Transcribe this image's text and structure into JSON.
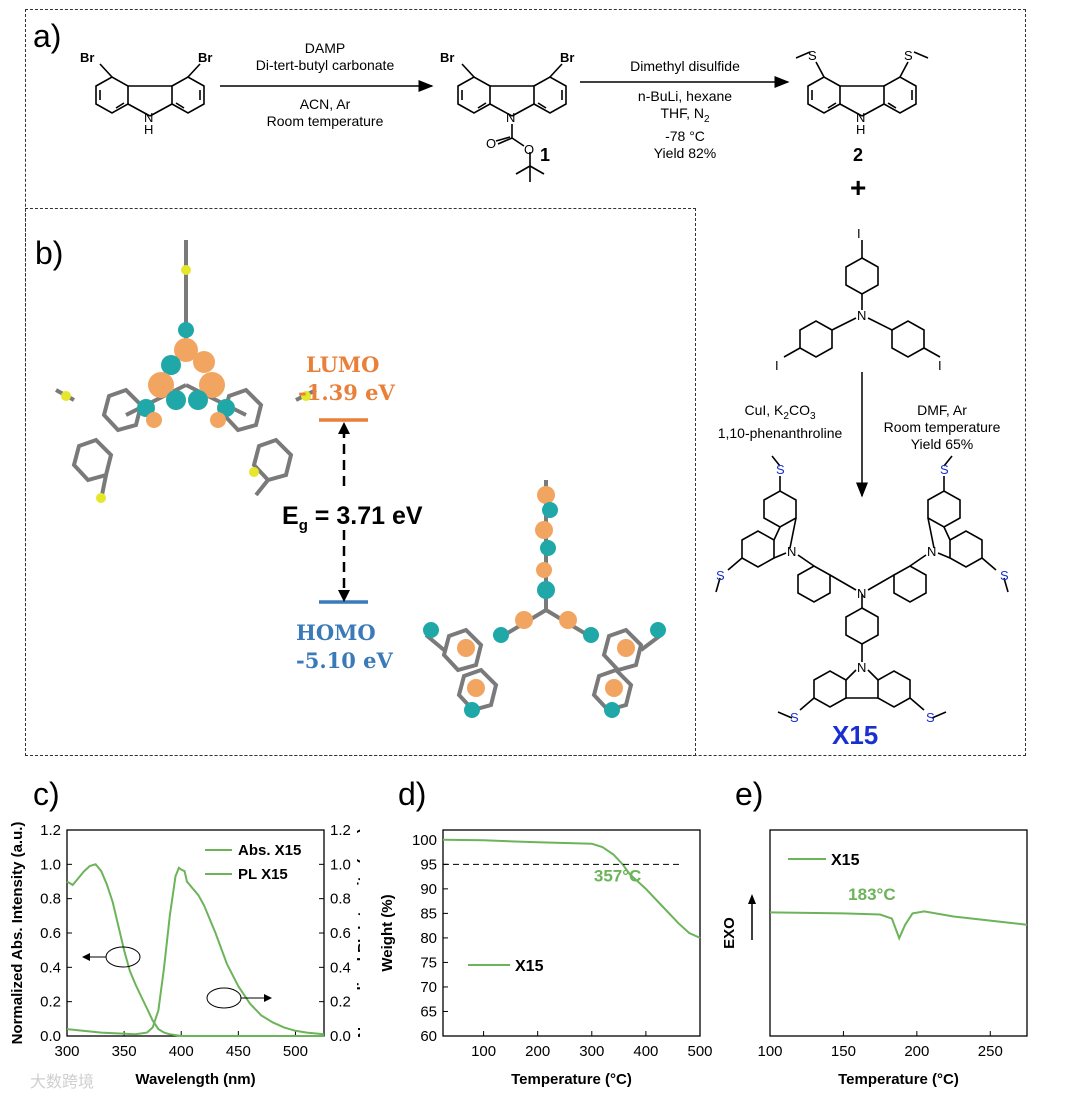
{
  "panel_labels": {
    "a": "a)",
    "b": "b)",
    "c": "c)",
    "d": "d)",
    "e": "e)"
  },
  "scheme": {
    "step1": {
      "above": [
        "DAMP",
        "Di-tert-butyl carbonate"
      ],
      "below": [
        "ACN, Ar",
        "Room temperature"
      ]
    },
    "step2": {
      "above": [
        "Dimethyl disulfide"
      ],
      "below": [
        "n-BuLi, hexane",
        "THF, N",
        "-78 °C",
        "Yield 82%"
      ],
      "n2_sub": "2"
    },
    "step3": {
      "left": [
        "CuI, K",
        "CO",
        "1,10-phenanthroline"
      ],
      "left_sub1": "2",
      "left_sub2": "3",
      "right": [
        "DMF, Ar",
        "Room temperature",
        "Yield 65%"
      ]
    },
    "compound1": "1",
    "compound2": "2",
    "plus": "+",
    "product": "X15",
    "atoms": {
      "br": "Br",
      "nh": "N",
      "h": "H",
      "n": "N",
      "o": "O",
      "s": "S",
      "i": "I"
    }
  },
  "orbitals": {
    "lumo_label": "LUMO",
    "lumo_value": "-1.39 eV",
    "homo_label": "HOMO",
    "homo_value": "-5.10 eV",
    "gap_symbol": "E",
    "gap_sub": "g",
    "gap_value": " = 3.71 eV",
    "colors": {
      "lumo": "#e8803a",
      "homo": "#3a7ab8",
      "iso_orange": "#f2a560",
      "iso_teal": "#20a8a8"
    }
  },
  "chart_data": [
    {
      "type": "line",
      "id": "c",
      "xlabel": "Wavelength (nm)",
      "ylabel": "Normalized Abs. Intensity (a.u.)",
      "y2label": "Normalized PL Intensity (a.u.)",
      "xlim": [
        300,
        525
      ],
      "ylim": [
        0,
        1.2
      ],
      "xticks": [
        "300",
        "350",
        "400",
        "450",
        "500"
      ],
      "yticks": [
        "0.0",
        "0.2",
        "0.4",
        "0.6",
        "0.8",
        "1.0",
        "1.2"
      ],
      "series": [
        {
          "name": "Abs. X15",
          "x": [
            300,
            305,
            310,
            315,
            320,
            325,
            330,
            335,
            340,
            345,
            350,
            355,
            360,
            365,
            370,
            375,
            380,
            385,
            390,
            400,
            420,
            450,
            500,
            525
          ],
          "y": [
            0.9,
            0.88,
            0.92,
            0.96,
            0.99,
            1.0,
            0.96,
            0.88,
            0.78,
            0.64,
            0.5,
            0.38,
            0.3,
            0.23,
            0.16,
            0.09,
            0.04,
            0.02,
            0.01,
            0.0,
            0.0,
            0.0,
            0.0,
            0.0
          ]
        },
        {
          "name": "PL X15",
          "x": [
            300,
            330,
            360,
            370,
            375,
            380,
            385,
            390,
            395,
            398,
            400,
            403,
            405,
            410,
            415,
            420,
            430,
            440,
            450,
            460,
            470,
            480,
            490,
            500,
            510,
            525
          ],
          "y": [
            0.04,
            0.02,
            0.01,
            0.02,
            0.05,
            0.15,
            0.4,
            0.7,
            0.93,
            0.98,
            0.97,
            0.96,
            0.9,
            0.86,
            0.82,
            0.76,
            0.6,
            0.42,
            0.29,
            0.19,
            0.12,
            0.08,
            0.05,
            0.03,
            0.02,
            0.01
          ]
        }
      ],
      "color": "#6cb35a"
    },
    {
      "type": "line",
      "id": "d",
      "xlabel": "Temperature (°C)",
      "ylabel": "Weight (%)",
      "xlim": [
        25,
        500
      ],
      "ylim": [
        60,
        102
      ],
      "xticks": [
        "100",
        "200",
        "300",
        "400",
        "500"
      ],
      "yticks": [
        "60",
        "65",
        "70",
        "75",
        "80",
        "85",
        "90",
        "95",
        "100"
      ],
      "reference_line": 95,
      "annotation": "357°C",
      "series": [
        {
          "name": "X15",
          "x": [
            25,
            100,
            200,
            300,
            320,
            340,
            357,
            370,
            400,
            430,
            460,
            480,
            500
          ],
          "y": [
            100,
            99.9,
            99.5,
            99.2,
            98.5,
            97,
            95,
            93,
            90,
            86.5,
            83,
            81,
            80
          ]
        }
      ],
      "color": "#6cb35a"
    },
    {
      "type": "line",
      "id": "e",
      "xlabel": "Temperature (°C)",
      "ylabel": "EXO",
      "xlim": [
        100,
        275
      ],
      "xticks": [
        "100",
        "150",
        "200",
        "250"
      ],
      "annotation": "183°C",
      "series": [
        {
          "name": "X15",
          "x": [
            100,
            150,
            175,
            183,
            188,
            192,
            197,
            205,
            225,
            250,
            275
          ],
          "y": [
            0,
            -0.01,
            -0.02,
            -0.06,
            -0.25,
            -0.12,
            -0.01,
            0.01,
            -0.04,
            -0.08,
            -0.12
          ]
        }
      ],
      "color": "#6cb35a"
    }
  ],
  "watermark": "大数跨境"
}
